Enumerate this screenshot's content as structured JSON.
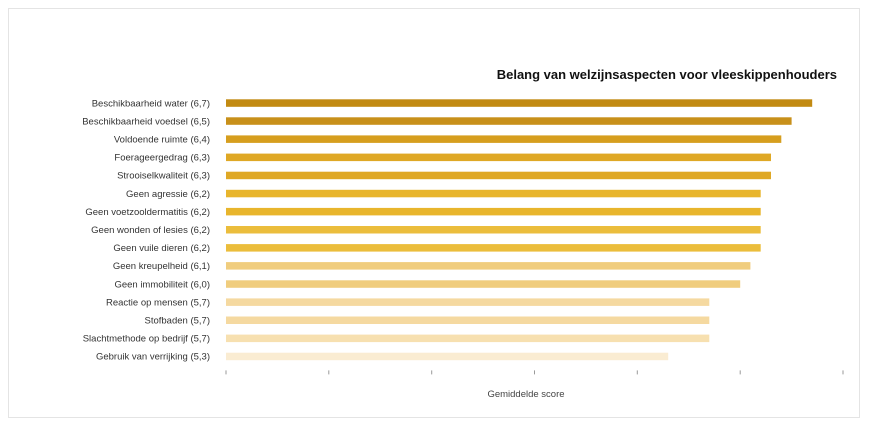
{
  "chart_data": {
    "type": "bar",
    "orientation": "horizontal",
    "title": "Belang van welzijnsaspecten voor vleeskippenhouders",
    "xlabel": "Gemiddelde score",
    "ylabel": "",
    "xlim": [
      1,
      7
    ],
    "grid": false,
    "legend": "none",
    "categories": [
      "Beschikbaarheid water (6,7)",
      "Beschikbaarheid voedsel (6,5)",
      "Voldoende ruimte (6,4)",
      "Foerageergedrag (6,3)",
      "Strooiselkwaliteit (6,3)",
      "Geen agressie (6,2)",
      "Geen voetzooldermatitis (6,2)",
      "Geen wonden of lesies (6,2)",
      "Geen vuile dieren (6,2)",
      "Geen kreupelheid (6,1)",
      "Geen immobiliteit (6,0)",
      "Reactie op mensen (5,7)",
      "Stofbaden (5,7)",
      "Slachtmethode op bedrijf (5,7)",
      "Gebruik van verrijking (5,3)"
    ],
    "values": [
      6.7,
      6.5,
      6.4,
      6.3,
      6.3,
      6.2,
      6.2,
      6.2,
      6.2,
      6.1,
      6.0,
      5.7,
      5.7,
      5.7,
      5.3
    ],
    "colors": [
      "#c28a12",
      "#c8901a",
      "#d69e1e",
      "#dfa825",
      "#dfa825",
      "#e8b52c",
      "#e8b52c",
      "#ebbd3c",
      "#ebbd3c",
      "#f0cd7e",
      "#f0cd7e",
      "#f5d9a0",
      "#f5d9a0",
      "#f7e0b0",
      "#faecd2"
    ]
  }
}
